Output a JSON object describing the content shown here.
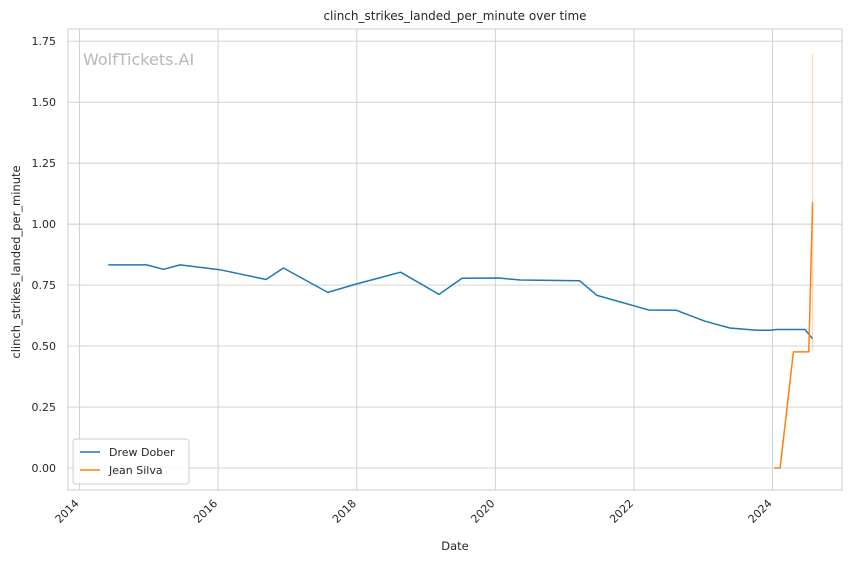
{
  "chart_data": {
    "type": "line",
    "title": "clinch_strikes_landed_per_minute over time",
    "xlabel": "Date",
    "ylabel": "clinch_strikes_landed_per_minute",
    "watermark": "WolfTickets.AI",
    "xlim": [
      "2013-11-01",
      "2025-01-01"
    ],
    "ylim": [
      -0.09,
      1.8
    ],
    "x_ticks": [
      "2014-01-01",
      "2016-01-01",
      "2018-01-01",
      "2020-01-01",
      "2022-01-01",
      "2024-01-01"
    ],
    "x_tick_labels": [
      "2014",
      "2016",
      "2018",
      "2020",
      "2022",
      "2024"
    ],
    "y_ticks": [
      0.0,
      0.25,
      0.5,
      0.75,
      1.0,
      1.25,
      1.5,
      1.75
    ],
    "y_tick_labels": [
      "0.00",
      "0.25",
      "0.50",
      "0.75",
      "1.00",
      "1.25",
      "1.50",
      "1.75"
    ],
    "grid": true,
    "legend_position": "lower-left",
    "series": [
      {
        "name": "Drew Dober",
        "color": "#1f77b4",
        "points": [
          [
            "2014-06-01",
            0.833
          ],
          [
            "2014-12-20",
            0.833
          ],
          [
            "2015-03-20",
            0.815
          ],
          [
            "2015-06-15",
            0.833
          ],
          [
            "2016-01-10",
            0.813
          ],
          [
            "2016-09-10",
            0.773
          ],
          [
            "2016-12-10",
            0.82
          ],
          [
            "2017-08-01",
            0.72
          ],
          [
            "2018-01-01",
            0.755
          ],
          [
            "2018-08-20",
            0.803
          ],
          [
            "2019-03-10",
            0.712
          ],
          [
            "2019-07-10",
            0.778
          ],
          [
            "2020-01-20",
            0.779
          ],
          [
            "2020-05-10",
            0.771
          ],
          [
            "2021-03-20",
            0.768
          ],
          [
            "2021-06-20",
            0.708
          ],
          [
            "2022-03-20",
            0.648
          ],
          [
            "2022-08-10",
            0.647
          ],
          [
            "2023-01-10",
            0.602
          ],
          [
            "2023-05-20",
            0.574
          ],
          [
            "2023-10-10",
            0.565
          ],
          [
            "2023-12-20",
            0.565
          ],
          [
            "2024-01-20",
            0.568
          ],
          [
            "2024-06-20",
            0.568
          ],
          [
            "2024-07-30",
            0.53
          ]
        ]
      },
      {
        "name": "Jean Silva",
        "color": "#ff7f0e",
        "points": [
          [
            "2024-01-10",
            0.0
          ],
          [
            "2024-02-10",
            0.0
          ],
          [
            "2024-04-20",
            0.476
          ],
          [
            "2024-07-10",
            0.476
          ],
          [
            "2024-07-30",
            1.09
          ]
        ],
        "band": {
          "x": "2024-07-30",
          "low": 0.48,
          "high": 1.7
        }
      }
    ]
  }
}
